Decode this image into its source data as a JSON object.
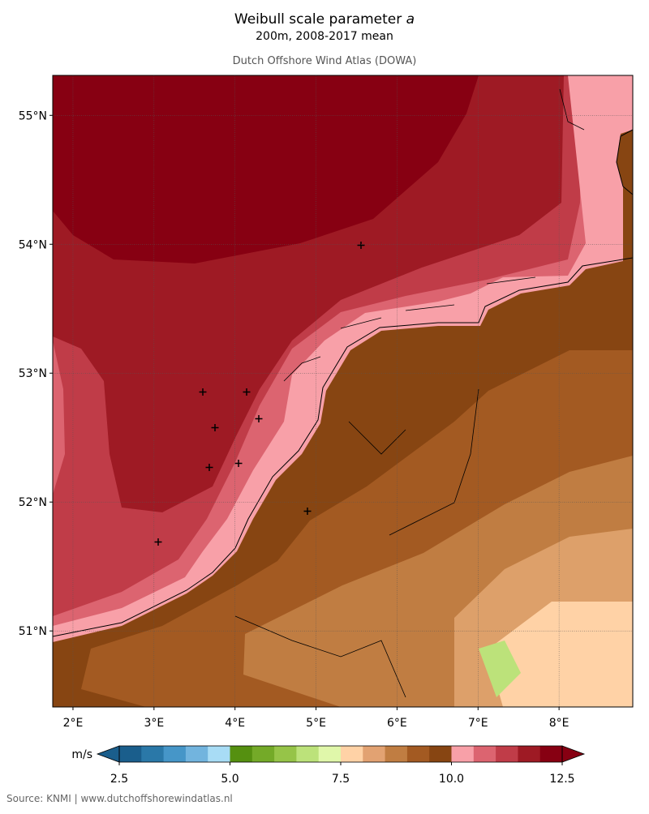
{
  "header": {
    "title": "Weibull scale parameter",
    "title_symbol": "a",
    "subtitle": "200m, 2008-2017 mean",
    "credit": "Dutch Offshore Wind Atlas (DOWA)"
  },
  "map": {
    "type": "contour-map",
    "xlim": [
      1.75,
      8.91
    ],
    "ylim": [
      50.41,
      55.31
    ],
    "xticks": [
      {
        "value": 2,
        "label": "2°E"
      },
      {
        "value": 3,
        "label": "3°E"
      },
      {
        "value": 4,
        "label": "4°E"
      },
      {
        "value": 5,
        "label": "5°E"
      },
      {
        "value": 6,
        "label": "6°E"
      },
      {
        "value": 7,
        "label": "7°E"
      },
      {
        "value": 8,
        "label": "8°E"
      }
    ],
    "yticks": [
      {
        "value": 51,
        "label": "51°N"
      },
      {
        "value": 52,
        "label": "52°N"
      },
      {
        "value": 53,
        "label": "53°N"
      },
      {
        "value": 54,
        "label": "54°N"
      },
      {
        "value": 55,
        "label": "55°N"
      }
    ],
    "grid": true
  },
  "colorbar": {
    "unit": "m/s",
    "colors": [
      "#1a5e8c",
      "#2a78a8",
      "#4696c8",
      "#72b4de",
      "#a8dcf5",
      "#559010",
      "#74aa28",
      "#96c448",
      "#bce27a",
      "#e0f7aa",
      "#ffd2a6",
      "#e2a272",
      "#c07d42",
      "#a35a22",
      "#874512",
      "#f8a0a8",
      "#dc6470",
      "#c03c48",
      "#9e1a24",
      "#870012"
    ],
    "ticks": [
      2.5,
      {
        "value": 5,
        "label": "5.0"
      },
      7.5,
      {
        "value": 10,
        "label": "10.0"
      },
      12.5
    ],
    "extend": "both"
  },
  "footer": {
    "source": "Source: KNMI | www.dutchoffshorewindatlas.nl"
  }
}
